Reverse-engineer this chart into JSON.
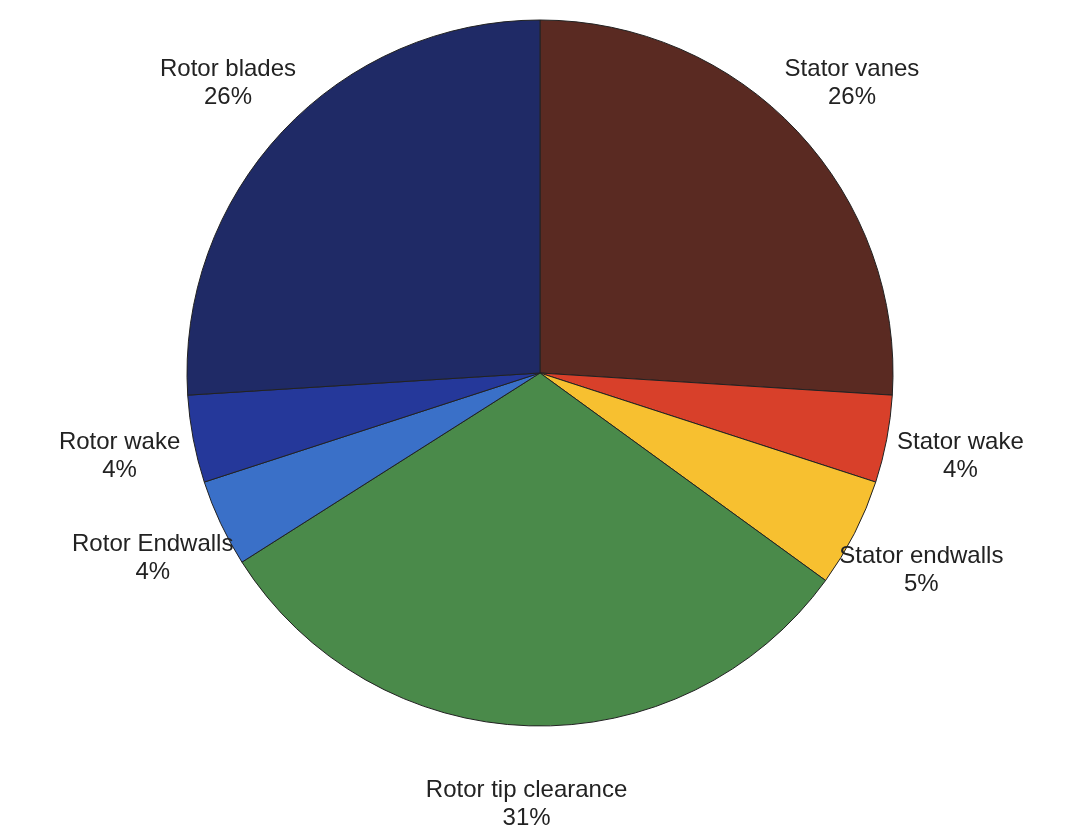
{
  "chart_data": {
    "type": "pie",
    "categories": [
      "Stator vanes",
      "Stator wake",
      "Stator endwalls",
      "Rotor tip clearance",
      "Rotor Endwalls",
      "Rotor wake",
      "Rotor blades"
    ],
    "values": [
      26,
      4,
      5,
      31,
      4,
      4,
      26
    ],
    "value_labels": [
      "26%",
      "4%",
      "5%",
      "31%",
      "4%",
      "4%",
      "26%"
    ],
    "colors": [
      "#5a2a22",
      "#d8402a",
      "#f7c030",
      "#4a8a4a",
      "#3a70c8",
      "#25389a",
      "#1f2a66"
    ]
  }
}
